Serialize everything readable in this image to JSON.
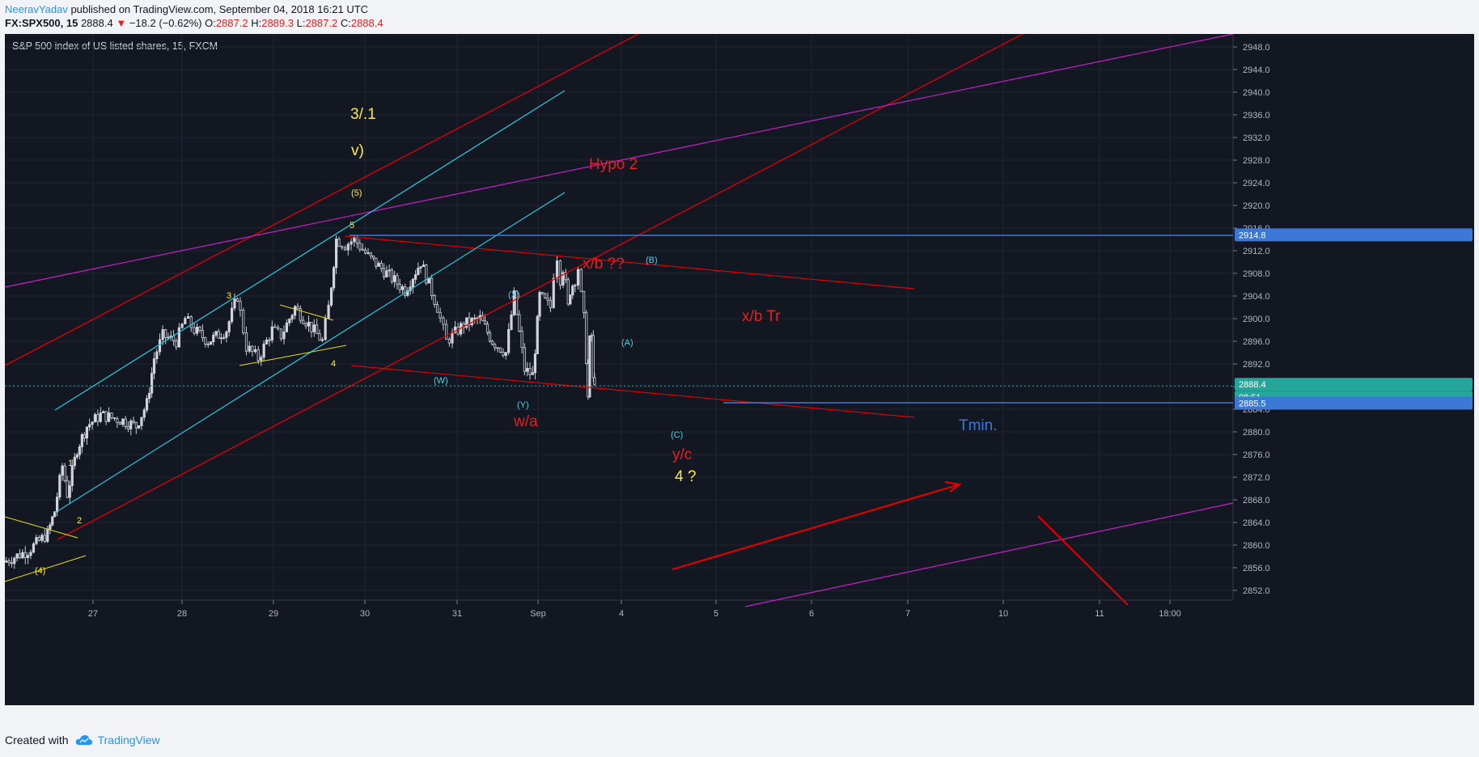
{
  "header": {
    "author": "NeeravYadav",
    "published": "published on TradingView.com, September 04, 2018 16:21 UTC",
    "symbol": "FX:SPX500, 15",
    "last_price": "2888.4",
    "change": "−18.2 (−0.62%)",
    "o_label": "O:",
    "o_value": "2887.2",
    "h_label": "H:",
    "h_value": "2889.3",
    "l_label": "L:",
    "l_value": "2887.2",
    "c_label": "C:",
    "c_value": "2888.4"
  },
  "footer": {
    "created_with": "Created with",
    "brand": "TradingView"
  },
  "colors": {
    "background": "#131722",
    "candle": "#d1d4dc",
    "red": "#e00000",
    "cyan": "#28c8dc",
    "magenta": "#c81ec8",
    "yellow": "#e6dc1e",
    "blue": "#3c78d8",
    "label_red": "#e91e1e",
    "label_yellow": "#ffeb3b",
    "label_cyan": "#4dd0e1"
  },
  "chart_data": {
    "type": "candlestick",
    "title": "S&P 500 index of US listed shares, 15, FXCM",
    "ylim": [
      2850,
      2952
    ],
    "y_ticks": [
      2852.0,
      2856.0,
      2860.0,
      2864.0,
      2868.0,
      2872.0,
      2876.0,
      2880.0,
      2884.0,
      2888.0,
      2892.0,
      2896.0,
      2900.0,
      2904.0,
      2908.0,
      2912.0,
      2916.0,
      2920.0,
      2924.0,
      2928.0,
      2932.0,
      2936.0,
      2940.0,
      2944.0,
      2948.0
    ],
    "x_ticks": [
      "27",
      "28",
      "29",
      "30",
      "31",
      "Sep",
      "4",
      "5",
      "6",
      "7",
      "10",
      "11",
      "18:00"
    ],
    "x_range": [
      26.1,
      13.9
    ],
    "last_price": 2888.4,
    "countdown": "08:51",
    "level_price": 2885.5,
    "resistance_price": 2914.8,
    "price_path": [
      [
        26.1,
        2857
      ],
      [
        26.35,
        2859
      ],
      [
        26.55,
        2862
      ],
      [
        26.62,
        2866
      ],
      [
        26.7,
        2874
      ],
      [
        26.75,
        2869
      ],
      [
        26.85,
        2877
      ],
      [
        26.95,
        2881
      ],
      [
        27.1,
        2883
      ],
      [
        27.35,
        2882
      ],
      [
        27.5,
        2881
      ],
      [
        27.62,
        2885
      ],
      [
        27.7,
        2893
      ],
      [
        27.8,
        2897
      ],
      [
        27.95,
        2896
      ],
      [
        28.05,
        2900
      ],
      [
        28.15,
        2898
      ],
      [
        28.3,
        2896
      ],
      [
        28.5,
        2898
      ],
      [
        28.62,
        2904
      ],
      [
        28.72,
        2895
      ],
      [
        28.85,
        2893
      ],
      [
        29.0,
        2898
      ],
      [
        29.1,
        2897
      ],
      [
        29.25,
        2902
      ],
      [
        29.4,
        2899
      ],
      [
        29.55,
        2896
      ],
      [
        29.62,
        2902
      ],
      [
        29.7,
        2914
      ],
      [
        29.8,
        2913
      ],
      [
        29.9,
        2914
      ],
      [
        30.05,
        2911
      ],
      [
        30.25,
        2908
      ],
      [
        30.45,
        2905
      ],
      [
        30.62,
        2910
      ],
      [
        30.8,
        2902
      ],
      [
        30.9,
        2896
      ],
      [
        31.1,
        2899
      ],
      [
        31.3,
        2900
      ],
      [
        31.45,
        2896
      ],
      [
        31.62,
        2894
      ],
      [
        31.72,
        2904
      ],
      [
        31.85,
        2891
      ],
      [
        31.95,
        2890
      ],
      [
        32.1,
        2904
      ],
      [
        32.3,
        2903
      ],
      [
        32.5,
        2902
      ],
      [
        32.62,
        2908
      ],
      [
        32.75,
        2911
      ],
      [
        32.85,
        2907
      ],
      [
        32.95,
        2909
      ],
      [
        33.05,
        2906
      ],
      [
        33.12,
        2902
      ],
      [
        33.2,
        2905
      ],
      [
        33.38,
        2907
      ],
      [
        33.5,
        2909
      ],
      [
        33.6,
        2904
      ],
      [
        33.7,
        2900
      ],
      [
        33.78,
        2893
      ],
      [
        33.82,
        2886
      ],
      [
        33.9,
        2896
      ],
      [
        33.96,
        2897
      ],
      [
        34.02,
        2889
      ],
      [
        34.05,
        2888.4
      ]
    ]
  },
  "annotations": [
    {
      "text": "3/.1",
      "color": "label_yellow",
      "size": "large"
    },
    {
      "text": "v)",
      "color": "label_yellow",
      "size": "large"
    },
    {
      "text": "(5)",
      "color": "label_yellow",
      "size": "small"
    },
    {
      "text": "5",
      "color": "label_yellow",
      "size": "small"
    },
    {
      "text": "3",
      "color": "label_yellow",
      "size": "small"
    },
    {
      "text": "4",
      "color": "label_yellow",
      "size": "small"
    },
    {
      "text": "1",
      "color": "label_yellow",
      "size": "small"
    },
    {
      "text": "2",
      "color": "label_yellow",
      "size": "small"
    },
    {
      "text": "(4)",
      "color": "label_yellow",
      "size": "small"
    },
    {
      "text": "Hypo 2",
      "color": "label_red",
      "size": "large"
    },
    {
      "text": "x/b ??",
      "color": "label_red",
      "size": "large"
    },
    {
      "text": "x/b Tr",
      "color": "label_red",
      "size": "large"
    },
    {
      "text": "w/a",
      "color": "label_red",
      "size": "large"
    },
    {
      "text": "y/c",
      "color": "label_red",
      "size": "large"
    },
    {
      "text": "4 ?",
      "color": "label_yellow",
      "size": "large"
    },
    {
      "text": "(B)",
      "color": "label_cyan",
      "size": "small"
    },
    {
      "text": "(X)",
      "color": "label_cyan",
      "size": "small"
    },
    {
      "text": "(A)",
      "color": "label_cyan",
      "size": "small"
    },
    {
      "text": "(W)",
      "color": "label_cyan",
      "size": "small"
    },
    {
      "text": "(Y)",
      "color": "label_cyan",
      "size": "small"
    },
    {
      "text": "(C)",
      "color": "label_cyan",
      "size": "small"
    },
    {
      "text": "Tmin.",
      "color": "blue",
      "size": "large"
    }
  ]
}
